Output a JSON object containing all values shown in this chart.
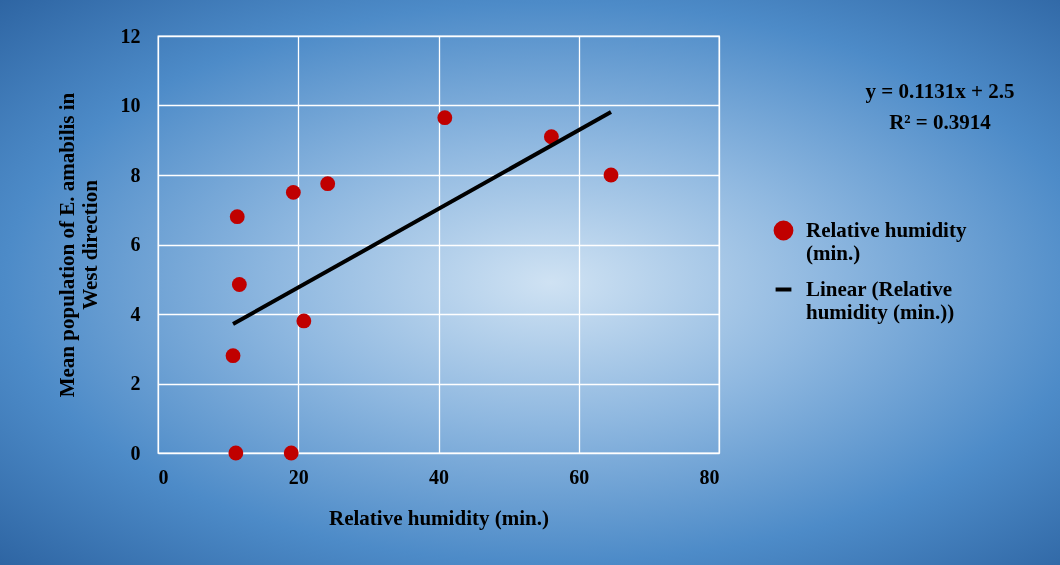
{
  "chart_data": {
    "type": "scatter",
    "xlabel": "Relative humidity (min.)",
    "ylabel": "Mean population of E. amabilis in West direction",
    "x": [
      11.3,
      19.3,
      24.2,
      40.9,
      56.1,
      64.6,
      11.6,
      20.8,
      10.7,
      11.1,
      19.0
    ],
    "series": [
      {
        "name": "Relative humidity (min.)",
        "color": "#c00000",
        "values": [
          6.8,
          7.5,
          7.75,
          9.65,
          9.1,
          8.0,
          4.85,
          3.8,
          2.8,
          0,
          0
        ]
      },
      {
        "name": "Linear (Relative humidity (min.))",
        "type": "line",
        "marker": "none",
        "color": "#000000",
        "x": [
          10.7,
          64.6
        ],
        "values": [
          3.71,
          9.81
        ]
      }
    ],
    "xlim": [
      0,
      80
    ],
    "xticks": [
      0,
      20,
      40,
      60,
      80
    ],
    "ylim": [
      0,
      12
    ],
    "yticks": [
      0,
      2,
      4,
      6,
      8,
      10,
      12
    ],
    "grid": true,
    "legend": "right",
    "marker": "circle",
    "annotations": [
      "y = 0.1131x + 2.5",
      "R² = 0.3914"
    ]
  }
}
